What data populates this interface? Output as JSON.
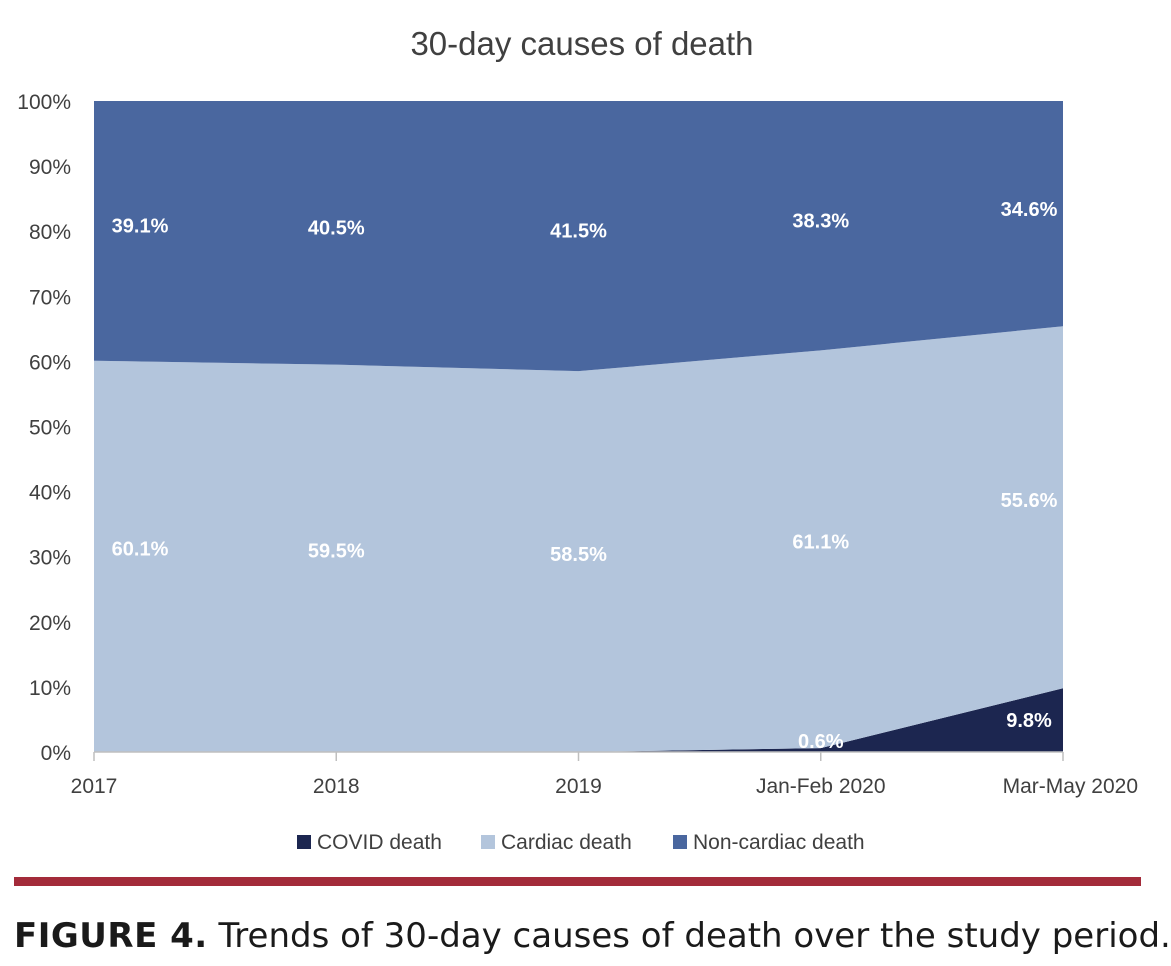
{
  "colors": {
    "covid": "#1c2650",
    "cardiac": "#b3c5dc",
    "noncardiac": "#4a679f",
    "rule": "#a32b3a",
    "text": "#404040"
  },
  "chart_data": {
    "type": "area",
    "stacked": true,
    "title": "30-day causes of death",
    "categories": [
      "2017",
      "2018",
      "2019",
      "Jan-Feb 2020",
      "Mar-May 2020"
    ],
    "y_ticks": [
      "0%",
      "10%",
      "20%",
      "30%",
      "40%",
      "50%",
      "60%",
      "70%",
      "80%",
      "90%",
      "100%"
    ],
    "ylim": [
      0,
      100
    ],
    "xlabel": "",
    "ylabel": "",
    "legend_position": "bottom",
    "series": [
      {
        "key": "covid",
        "name": "COVID death",
        "values": [
          0,
          0,
          0,
          0.6,
          9.8
        ],
        "labels": [
          "",
          "",
          "",
          "0.6%",
          "9.8%"
        ]
      },
      {
        "key": "cardiac",
        "name": "Cardiac death",
        "values": [
          60.1,
          59.5,
          58.5,
          61.1,
          55.6
        ],
        "labels": [
          "60.1%",
          "59.5%",
          "58.5%",
          "61.1%",
          "55.6%"
        ]
      },
      {
        "key": "noncardiac",
        "name": "Non-cardiac death",
        "values": [
          39.1,
          40.5,
          41.5,
          38.3,
          34.6
        ],
        "labels": [
          "39.1%",
          "40.5%",
          "41.5%",
          "38.3%",
          "34.6%"
        ]
      }
    ]
  },
  "caption": {
    "lead": "FIGURE 4.",
    "text": " Trends of 30-day causes of death over the study period."
  }
}
